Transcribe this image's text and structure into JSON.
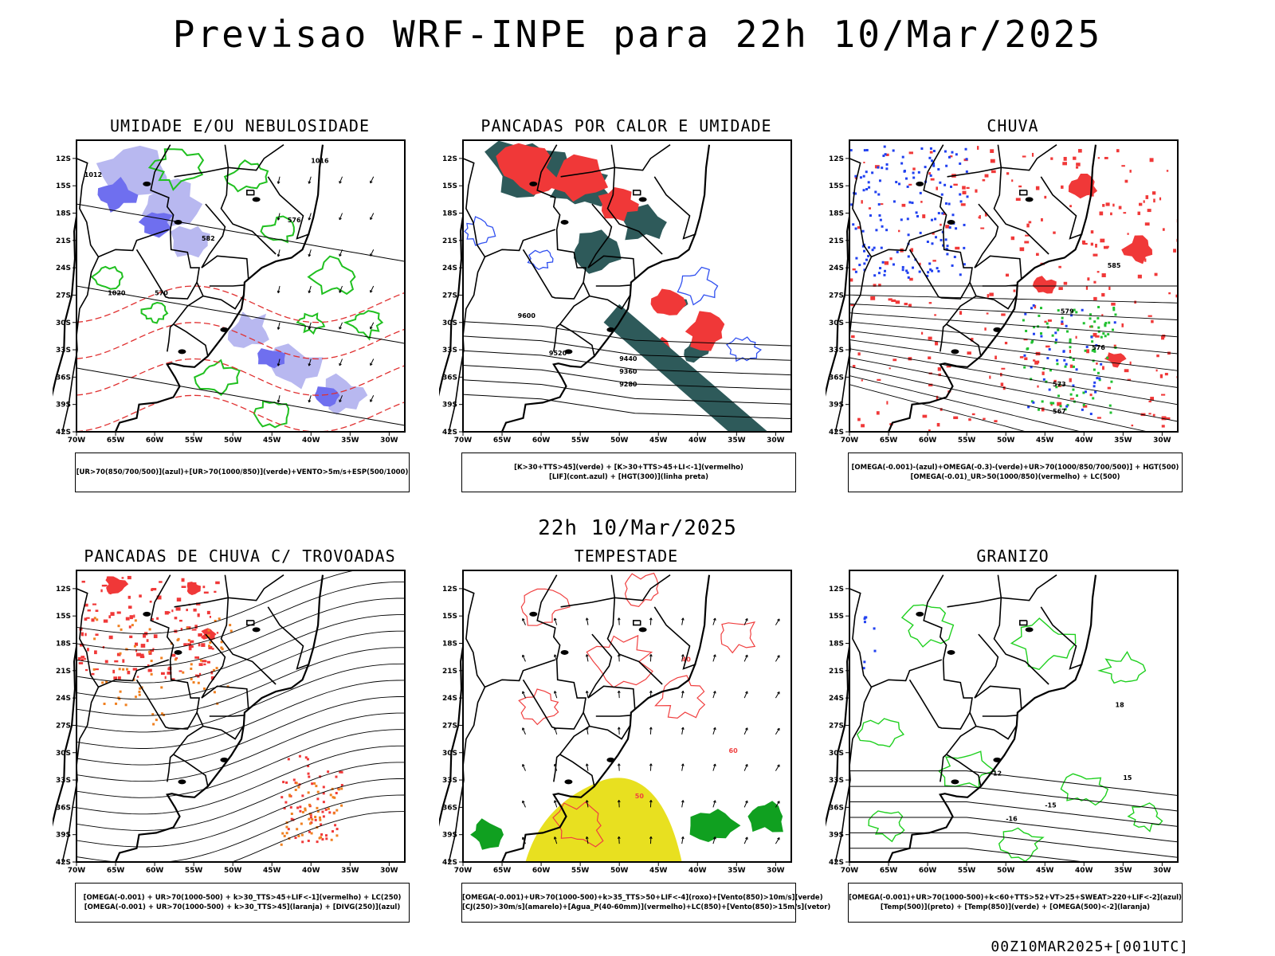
{
  "header": {
    "title": "Previsao WRF-INPE  para 22h 10/Mar/2025"
  },
  "middle": {
    "title": "22h 10/Mar/2025"
  },
  "footer": {
    "run": "00Z10MAR2025+[001UTC]"
  },
  "axes": {
    "lat_labels": [
      "12S",
      "15S",
      "18S",
      "21S",
      "24S",
      "27S",
      "30S",
      "33S",
      "36S",
      "39S",
      "42S"
    ],
    "lon_labels": [
      "70W",
      "65W",
      "60W",
      "55W",
      "50W",
      "45W",
      "40W",
      "35W",
      "30W"
    ]
  },
  "panels": [
    {
      "title": "UMIDADE E/OU NEBULOSIDADE",
      "legend": [
        "[UR>70(850/700/500)](azul)+[UR>70(1000/850)](verde)+VENTO>5m/s+ESP(500/1000)"
      ],
      "contour_labels": [
        "1012",
        "1016",
        "1020",
        "570",
        "576",
        "582"
      ],
      "colors": {
        "fill1": "#6f6fef",
        "fill2": "#b8b8f0",
        "contour": "#20c020",
        "dash": "#e03030"
      }
    },
    {
      "title": "PANCADAS POR CALOR E UMIDADE",
      "legend": [
        "[K>30+TTS>45](verde) + [K>30+TTS>45+LI<-1](vermelho)",
        "[LIF](cont.azul) + [HGT(300)](linha preta)"
      ],
      "contour_labels": [
        "9600",
        "9520",
        "9440",
        "9360",
        "9280"
      ],
      "colors": {
        "fill1": "#f03838",
        "fill2": "#2e5a5a",
        "contour": "#3050f0"
      }
    },
    {
      "title": "CHUVA",
      "legend": [
        "[OMEGA(-0.001)-(azul)+OMEGA(-0.3)-(verde)+UR>70(1000/850/700/500)] + HGT(500)",
        "[OMEGA(-0.01)_UR>50(1000/850)(vermelho) + LC(500)"
      ],
      "contour_labels": [
        "585",
        "579",
        "576",
        "573",
        "567"
      ],
      "colors": {
        "fill1": "#f03838",
        "fill2": "#2040f0",
        "fill3": "#20c030"
      }
    },
    {
      "title": "PANCADAS DE CHUVA C/ TROVOADAS",
      "legend": [
        "[OMEGA(-0.001) + UR>70(1000-500) + k>30_TTS>45+LIF<-1](vermelho) + LC(250)",
        "[OMEGA(-0.001) + UR>70(1000-500) + k>30_TTS>45](laranja) + [DIVG(250)](azul)"
      ],
      "contour_labels": [],
      "colors": {
        "fill1": "#f03838",
        "fill2": "#f08020"
      }
    },
    {
      "title": "TEMPESTADE",
      "legend": [
        "[OMEGA(-0.001)+UR>70(1000-500)+k>35_TTS>50+LIF<-4](roxo)+[Vento(850)>10m/s](verde)",
        "[CJ(250)>30m/s](amarelo)+[Agua_P(40-60mm)](vermelho)+LC(850)+[Vento(850)>15m/s](vetor)"
      ],
      "contour_labels": [
        "40",
        "50",
        "60"
      ],
      "colors": {
        "fill1": "#e8e020",
        "fill2": "#10a020",
        "contour": "#f04040"
      }
    },
    {
      "title": "GRANIZO",
      "legend": [
        "[OMEGA(-0.001)+UR>70(1000-500)+k<60+TTS>52+VT>25+SWEAT>220+LIF<-2](azul)",
        "[Temp(500)](preto) + [Temp(850)](verde) + [OMEGA(500)<-2](laranja)"
      ],
      "contour_labels": [
        "-12",
        "-15",
        "-16",
        "15",
        "18"
      ],
      "colors": {
        "contour": "#20d020",
        "contour2": "#000000"
      }
    }
  ]
}
